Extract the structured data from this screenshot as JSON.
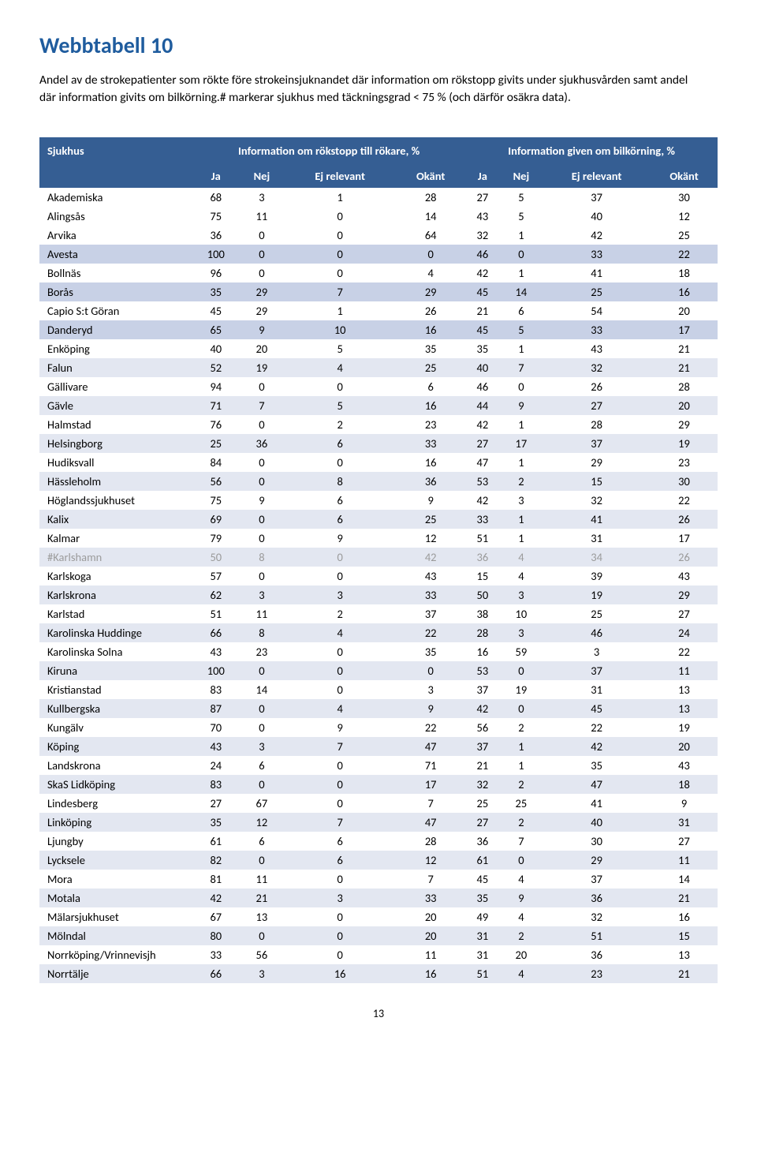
{
  "title": "Webbtabell 10",
  "description": "Andel av de strokepatienter som rökte före strokeinsjuknandet där information om rökstopp givits under sjukhusvården samt andel där information givits om bilkörning.# markerar sjukhus med täckningsgrad < 75 % (och därför osäkra data).",
  "table": {
    "header_sjukhus": "Sjukhus",
    "group1": "Information om rökstopp till rökare, %",
    "group2": "Information given om bilkörning, %",
    "sub_cols": [
      "Ja",
      "Nej",
      "Ej relevant",
      "Okänt",
      "Ja",
      "Nej",
      "Ej relevant",
      "Okänt"
    ],
    "rows": [
      {
        "name": "Akademiska",
        "v": [
          68,
          3,
          1,
          28,
          27,
          5,
          37,
          30
        ],
        "shade": 0
      },
      {
        "name": "Alingsås",
        "v": [
          75,
          11,
          0,
          14,
          43,
          5,
          40,
          12
        ],
        "shade": 0
      },
      {
        "name": "Arvika",
        "v": [
          36,
          0,
          0,
          64,
          32,
          1,
          42,
          25
        ],
        "shade": 0
      },
      {
        "name": "Avesta",
        "v": [
          100,
          0,
          0,
          0,
          46,
          0,
          33,
          22
        ],
        "shade": 2
      },
      {
        "name": "Bollnäs",
        "v": [
          96,
          0,
          0,
          4,
          42,
          1,
          41,
          18
        ],
        "shade": 0
      },
      {
        "name": "Borås",
        "v": [
          35,
          29,
          7,
          29,
          45,
          14,
          25,
          16
        ],
        "shade": 2
      },
      {
        "name": "Capio S:t Göran",
        "v": [
          45,
          29,
          1,
          26,
          21,
          6,
          54,
          20
        ],
        "shade": 0
      },
      {
        "name": "Danderyd",
        "v": [
          65,
          9,
          10,
          16,
          45,
          5,
          33,
          17
        ],
        "shade": 2
      },
      {
        "name": "Enköping",
        "v": [
          40,
          20,
          5,
          35,
          35,
          1,
          43,
          21
        ],
        "shade": 0
      },
      {
        "name": "Falun",
        "v": [
          52,
          19,
          4,
          25,
          40,
          7,
          32,
          21
        ],
        "shade": 1
      },
      {
        "name": "Gällivare",
        "v": [
          94,
          0,
          0,
          6,
          46,
          0,
          26,
          28
        ],
        "shade": 0
      },
      {
        "name": "Gävle",
        "v": [
          71,
          7,
          5,
          16,
          44,
          9,
          27,
          20
        ],
        "shade": 1
      },
      {
        "name": "Halmstad",
        "v": [
          76,
          0,
          2,
          23,
          42,
          1,
          28,
          29
        ],
        "shade": 0
      },
      {
        "name": "Helsingborg",
        "v": [
          25,
          36,
          6,
          33,
          27,
          17,
          37,
          19
        ],
        "shade": 1
      },
      {
        "name": "Hudiksvall",
        "v": [
          84,
          0,
          0,
          16,
          47,
          1,
          29,
          23
        ],
        "shade": 0
      },
      {
        "name": "Hässleholm",
        "v": [
          56,
          0,
          8,
          36,
          53,
          2,
          15,
          30
        ],
        "shade": 1
      },
      {
        "name": "Höglandssjukhuset",
        "v": [
          75,
          9,
          6,
          9,
          42,
          3,
          32,
          22
        ],
        "shade": 0
      },
      {
        "name": "Kalix",
        "v": [
          69,
          0,
          6,
          25,
          33,
          1,
          41,
          26
        ],
        "shade": 1
      },
      {
        "name": "Kalmar",
        "v": [
          79,
          0,
          9,
          12,
          51,
          1,
          31,
          17
        ],
        "shade": 0
      },
      {
        "name": "#Karlshamn",
        "v": [
          50,
          8,
          0,
          42,
          36,
          4,
          34,
          26
        ],
        "shade": 1,
        "muted": true
      },
      {
        "name": "Karlskoga",
        "v": [
          57,
          0,
          0,
          43,
          15,
          4,
          39,
          43
        ],
        "shade": 0
      },
      {
        "name": "Karlskrona",
        "v": [
          62,
          3,
          3,
          33,
          50,
          3,
          19,
          29
        ],
        "shade": 1
      },
      {
        "name": "Karlstad",
        "v": [
          51,
          11,
          2,
          37,
          38,
          10,
          25,
          27
        ],
        "shade": 0
      },
      {
        "name": "Karolinska Huddinge",
        "v": [
          66,
          8,
          4,
          22,
          28,
          3,
          46,
          24
        ],
        "shade": 1
      },
      {
        "name": "Karolinska Solna",
        "v": [
          43,
          23,
          0,
          35,
          16,
          59,
          3,
          22
        ],
        "shade": 0
      },
      {
        "name": "Kiruna",
        "v": [
          100,
          0,
          0,
          0,
          53,
          0,
          37,
          11
        ],
        "shade": 1
      },
      {
        "name": "Kristianstad",
        "v": [
          83,
          14,
          0,
          3,
          37,
          19,
          31,
          13
        ],
        "shade": 0
      },
      {
        "name": "Kullbergska",
        "v": [
          87,
          0,
          4,
          9,
          42,
          0,
          45,
          13
        ],
        "shade": 1
      },
      {
        "name": "Kungälv",
        "v": [
          70,
          0,
          9,
          22,
          56,
          2,
          22,
          19
        ],
        "shade": 0
      },
      {
        "name": "Köping",
        "v": [
          43,
          3,
          7,
          47,
          37,
          1,
          42,
          20
        ],
        "shade": 1
      },
      {
        "name": "Landskrona",
        "v": [
          24,
          6,
          0,
          71,
          21,
          1,
          35,
          43
        ],
        "shade": 0
      },
      {
        "name": "SkaS Lidköping",
        "v": [
          83,
          0,
          0,
          17,
          32,
          2,
          47,
          18
        ],
        "shade": 1
      },
      {
        "name": "Lindesberg",
        "v": [
          27,
          67,
          0,
          7,
          25,
          25,
          41,
          9
        ],
        "shade": 0
      },
      {
        "name": "Linköping",
        "v": [
          35,
          12,
          7,
          47,
          27,
          2,
          40,
          31
        ],
        "shade": 1
      },
      {
        "name": "Ljungby",
        "v": [
          61,
          6,
          6,
          28,
          36,
          7,
          30,
          27
        ],
        "shade": 0
      },
      {
        "name": "Lycksele",
        "v": [
          82,
          0,
          6,
          12,
          61,
          0,
          29,
          11
        ],
        "shade": 1
      },
      {
        "name": "Mora",
        "v": [
          81,
          11,
          0,
          7,
          45,
          4,
          37,
          14
        ],
        "shade": 0
      },
      {
        "name": "Motala",
        "v": [
          42,
          21,
          3,
          33,
          35,
          9,
          36,
          21
        ],
        "shade": 1
      },
      {
        "name": "Mälarsjukhuset",
        "v": [
          67,
          13,
          0,
          20,
          49,
          4,
          32,
          16
        ],
        "shade": 0
      },
      {
        "name": "Mölndal",
        "v": [
          80,
          0,
          0,
          20,
          31,
          2,
          51,
          15
        ],
        "shade": 1
      },
      {
        "name": "Norrköping/Vrinnevisjh",
        "v": [
          33,
          56,
          0,
          11,
          31,
          20,
          36,
          13
        ],
        "shade": 0
      },
      {
        "name": "Norrtälje",
        "v": [
          66,
          3,
          16,
          16,
          51,
          4,
          23,
          21
        ],
        "shade": 1
      }
    ]
  },
  "page_number": "13",
  "colors": {
    "title": "#1f5c9e",
    "header_bg": "#355e93",
    "header_fg": "#ffffff",
    "shade0": "#ffffff",
    "shade1": "#e3e7f1",
    "shade2": "#c8d1e6",
    "muted": "#9b9b9b"
  }
}
